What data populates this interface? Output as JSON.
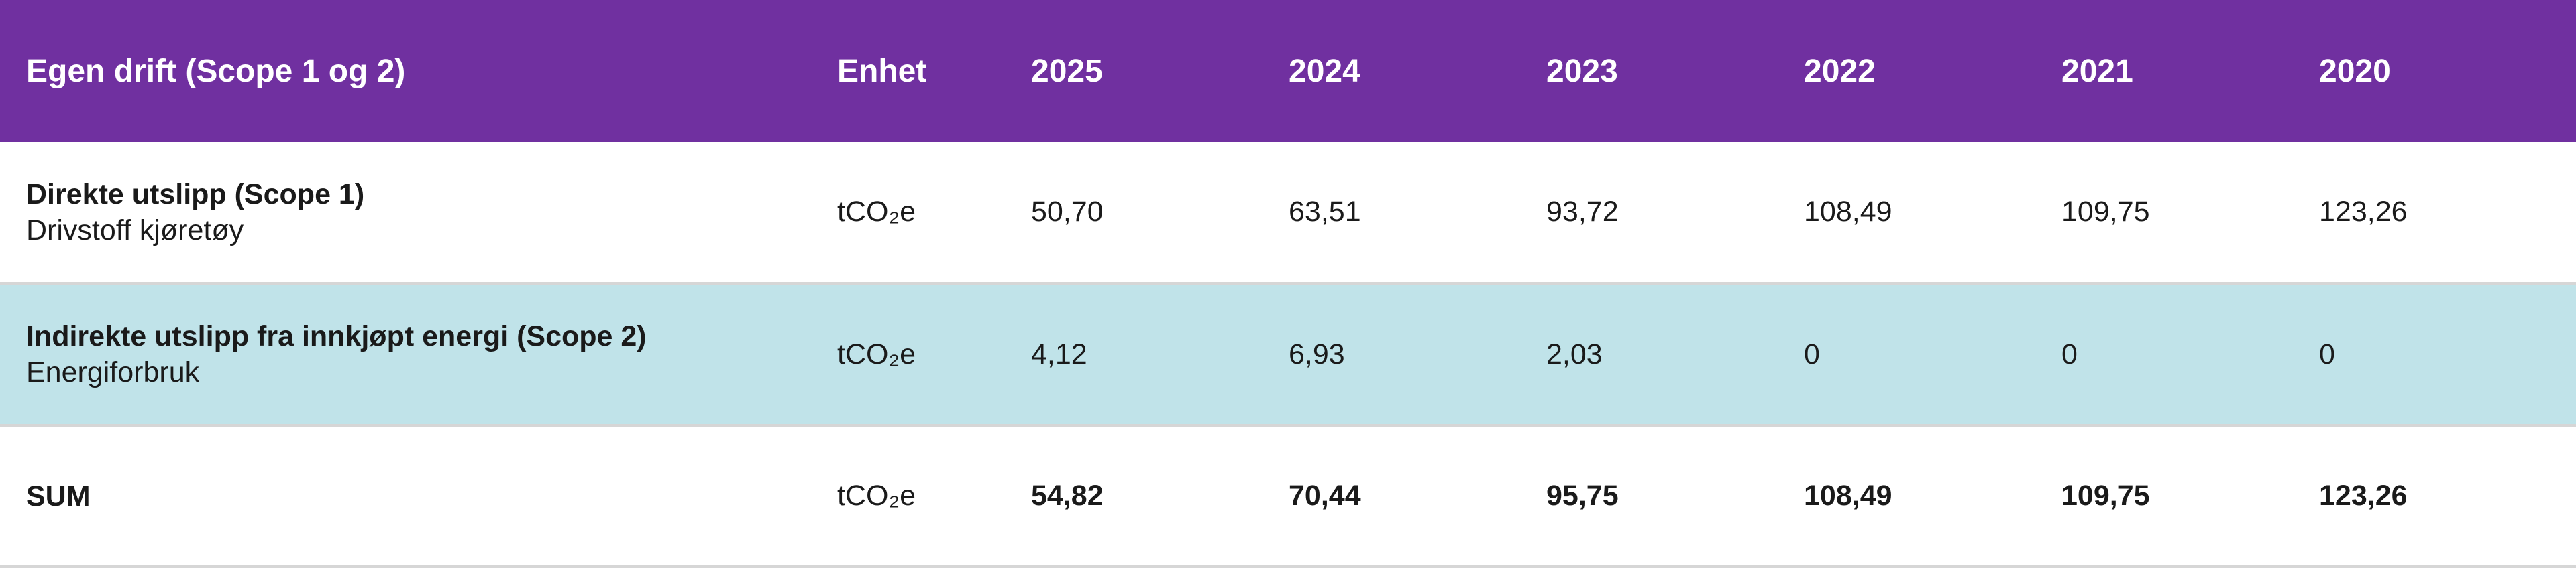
{
  "table": {
    "headers": {
      "label": "Egen drift (Scope 1 og 2)",
      "unit": "Enhet",
      "years": [
        "2025",
        "2024",
        "2023",
        "2022",
        "2021",
        "2020"
      ]
    },
    "rows": [
      {
        "title": "Direkte utslipp (Scope 1)",
        "subtitle": "Drivstoff kjøretøy",
        "unit": "tCO₂e",
        "values": [
          "50,70",
          "63,51",
          "93,72",
          "108,49",
          "109,75",
          "123,26"
        ]
      },
      {
        "title": "Indirekte utslipp fra innkjøpt energi (Scope 2)",
        "subtitle": "Energiforbruk",
        "unit": "tCO₂e",
        "values": [
          "4,12",
          "6,93",
          "2,03",
          "0",
          "0",
          "0"
        ]
      },
      {
        "title": "SUM",
        "unit": "tCO₂e",
        "values": [
          "54,82",
          "70,44",
          "95,75",
          "108,49",
          "109,75",
          "123,26"
        ]
      }
    ]
  },
  "colors": {
    "header_bg": "#7030a0",
    "scope2_row_bg": "#c0e3e9"
  }
}
